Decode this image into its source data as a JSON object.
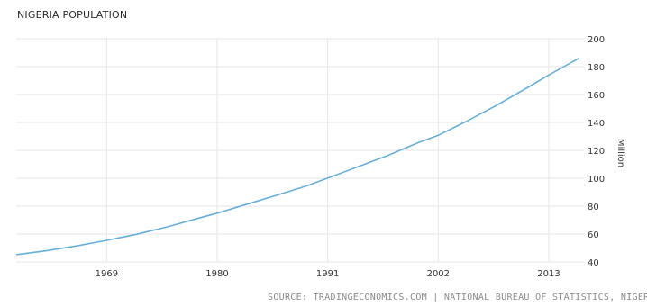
{
  "chart_data": {
    "type": "line",
    "title": "NIGERIA POPULATION",
    "xlabel": "",
    "ylabel": "Million",
    "x": [
      1960,
      1963,
      1966,
      1969,
      1972,
      1975,
      1978,
      1980,
      1983,
      1986,
      1989,
      1991,
      1994,
      1997,
      2000,
      2002,
      2005,
      2008,
      2011,
      2013,
      2016
    ],
    "series": [
      {
        "values": [
          45.2,
          48.0,
          51.5,
          55.5,
          59.9,
          65.1,
          71.1,
          75.0,
          81.5,
          88.0,
          94.8,
          100.1,
          108.2,
          116.4,
          125.5,
          130.8,
          141.5,
          153.0,
          165.5,
          174.0,
          186.0
        ]
      }
    ],
    "xticks": [
      "1969",
      "1980",
      "1991",
      "2002",
      "2013"
    ],
    "yticks": [
      "40",
      "60",
      "80",
      "100",
      "120",
      "140",
      "160",
      "180",
      "200"
    ],
    "xlim": [
      1960,
      2016.5
    ],
    "ylim": [
      40,
      200
    ],
    "grid": true,
    "colors": {
      "line": "#6aaed6",
      "grid": "#e6e6e6",
      "text": "#333333"
    }
  },
  "source": "SOURCE: TRADINGECONOMICS.COM | NATIONAL BUREAU OF STATISTICS, NIGERIA"
}
